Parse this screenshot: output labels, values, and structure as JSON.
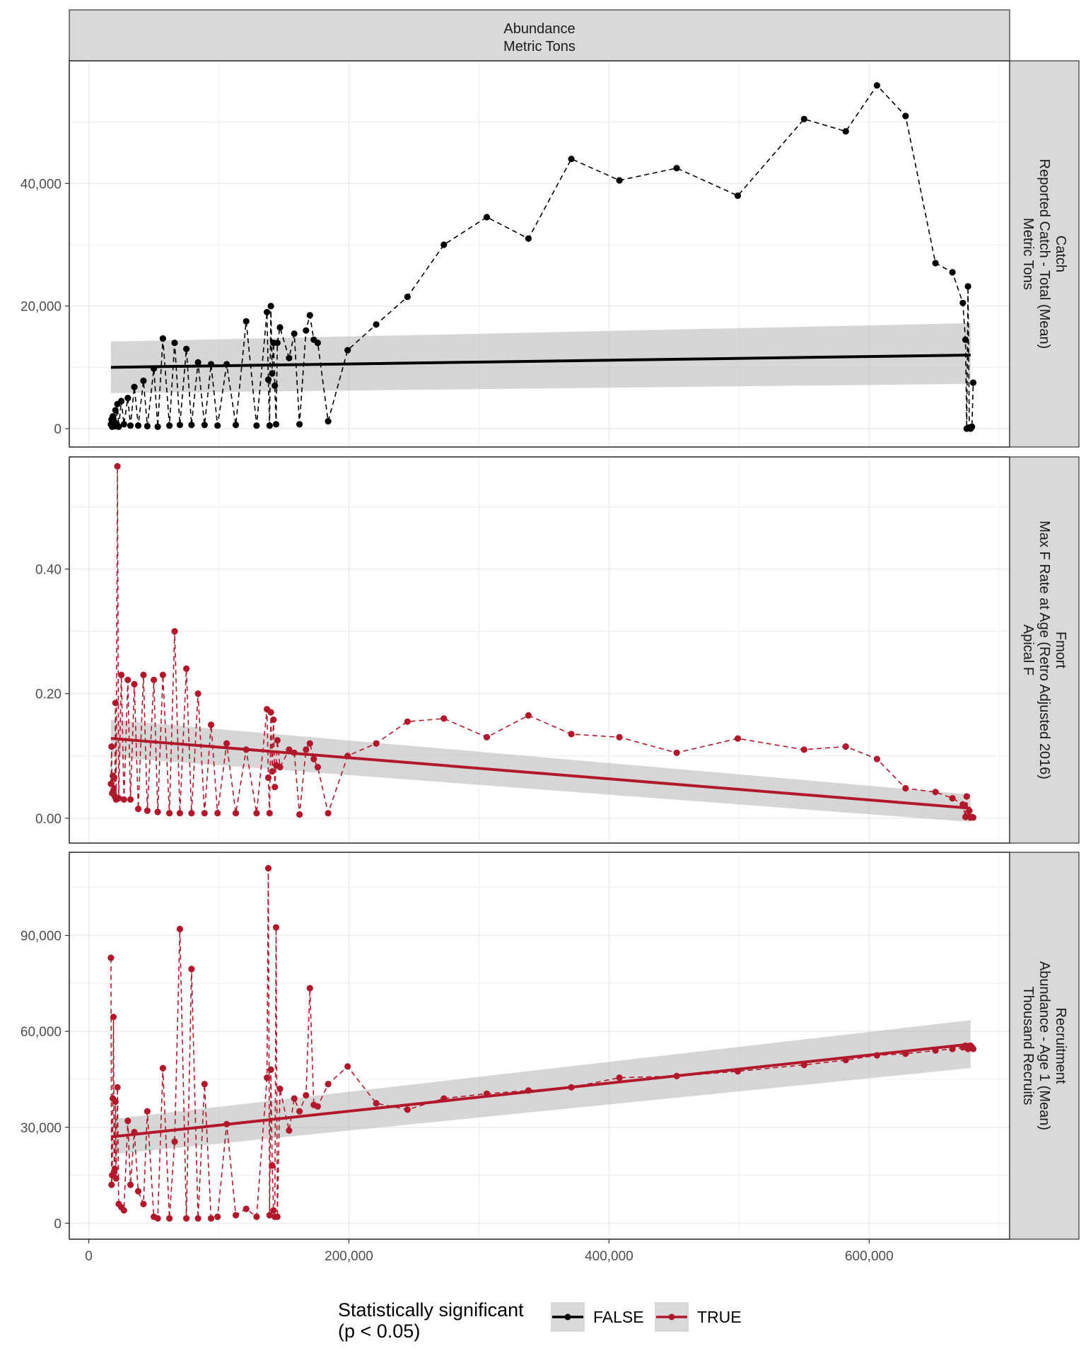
{
  "chart_data": {
    "type": "line",
    "column_strip": [
      "Abundance",
      "Metric Tons"
    ],
    "x_ticks": [
      {
        "value": 0,
        "label": "0"
      },
      {
        "value": 200000,
        "label": "200,000"
      },
      {
        "value": 400000,
        "label": "400,000"
      },
      {
        "value": 600000,
        "label": "600,000"
      }
    ],
    "xlim": [
      -15000,
      708000
    ],
    "colors": {
      "FALSE": "#000000",
      "TRUE": "#b2182b",
      "ribbon": "#bdbdbd",
      "strip": "#d9d9d9",
      "grid": "#ebebeb"
    },
    "legend": {
      "title_lines": [
        "Statistically significant",
        "(p < 0.05)"
      ],
      "placement": "bottom",
      "items": [
        {
          "key": "FALSE",
          "label": "FALSE"
        },
        {
          "key": "TRUE",
          "label": "TRUE"
        }
      ]
    },
    "panels": [
      {
        "strip": [
          "Catch",
          "Reported Catch - Total (Mean)",
          "Metric Tons"
        ],
        "significant": "FALSE",
        "ylim": [
          -3000,
          60000
        ],
        "y_ticks": [
          {
            "value": 0,
            "label": "0"
          },
          {
            "value": 20000,
            "label": "20,000"
          },
          {
            "value": 40000,
            "label": "40,000"
          }
        ],
        "trend": {
          "x": [
            17000,
            678000
          ],
          "y": [
            10000,
            12000
          ],
          "lower": [
            5800,
            7300
          ],
          "upper": [
            14200,
            17200
          ]
        },
        "x": [
          17000,
          17500,
          18000,
          18500,
          19000,
          19500,
          20000,
          20500,
          21000,
          22000,
          23000,
          25000,
          27000,
          30000,
          32000,
          35000,
          38000,
          42000,
          45000,
          50000,
          53000,
          57000,
          62000,
          66000,
          70000,
          75000,
          79000,
          84000,
          89000,
          94000,
          99000,
          106000,
          113000,
          121000,
          129000,
          137000,
          138000,
          139000,
          140000,
          141000,
          142000,
          143000,
          144000,
          145000,
          147000,
          154000,
          158000,
          162000,
          167000,
          170000,
          173000,
          176000,
          184000,
          199000,
          221000,
          245000,
          273000,
          306000,
          338000,
          371000,
          408000,
          452000,
          499000,
          550000,
          582000,
          606000,
          628000,
          651000,
          664000,
          672000,
          674000,
          675000,
          676000,
          677000,
          678000,
          679000,
          680000
        ],
        "y": [
          700,
          1500,
          300,
          2000,
          500,
          1000,
          400,
          3000,
          800,
          4000,
          300,
          4500,
          700,
          5000,
          500,
          6800,
          500,
          7800,
          400,
          9800,
          300,
          14700,
          500,
          14000,
          600,
          13000,
          600,
          10800,
          600,
          10500,
          500,
          10500,
          600,
          17500,
          500,
          19000,
          8000,
          500,
          20000,
          9000,
          14000,
          7000,
          700,
          14000,
          16500,
          11500,
          15500,
          700,
          16000,
          18500,
          14500,
          14000,
          1200,
          12800,
          17000,
          21500,
          30000,
          34500,
          31000,
          44000,
          40500,
          42500,
          38000,
          50500,
          48500,
          56000,
          51000,
          27000,
          25500,
          20500,
          14500,
          0,
          23200,
          200,
          0,
          300,
          7500
        ]
      },
      {
        "strip": [
          "Fmort",
          "Max F Rate at Age (Retro Adjusted 2016)",
          "Apical F"
        ],
        "significant": "TRUE",
        "ylim": [
          -0.04,
          0.58
        ],
        "y_ticks": [
          {
            "value": 0,
            "label": "0.00"
          },
          {
            "value": 0.2,
            "label": "0.20"
          },
          {
            "value": 0.4,
            "label": "0.40"
          }
        ],
        "trend": {
          "x": [
            17000,
            678000
          ],
          "y": [
            0.128,
            0.016
          ],
          "lower": [
            0.098,
            -0.006
          ],
          "upper": [
            0.158,
            0.038
          ]
        },
        "x": [
          17000,
          17500,
          18000,
          18500,
          19000,
          19500,
          20000,
          20500,
          21000,
          22000,
          23000,
          25000,
          27000,
          30000,
          32000,
          35000,
          38000,
          42000,
          45000,
          50000,
          53000,
          57000,
          62000,
          66000,
          70000,
          75000,
          79000,
          84000,
          89000,
          94000,
          99000,
          106000,
          113000,
          121000,
          129000,
          137000,
          138000,
          139000,
          140000,
          141000,
          142000,
          143000,
          144000,
          145000,
          147000,
          154000,
          158000,
          162000,
          167000,
          170000,
          173000,
          176000,
          184000,
          199000,
          221000,
          245000,
          273000,
          306000,
          338000,
          371000,
          408000,
          452000,
          499000,
          550000,
          582000,
          606000,
          628000,
          651000,
          664000,
          672000,
          674000,
          675000,
          676000,
          677000,
          678000,
          679000,
          680000
        ],
        "y": [
          0.055,
          0.115,
          0.04,
          0.068,
          0.045,
          0.065,
          0.035,
          0.185,
          0.03,
          0.565,
          0.032,
          0.23,
          0.03,
          0.222,
          0.03,
          0.215,
          0.015,
          0.23,
          0.012,
          0.222,
          0.01,
          0.23,
          0.008,
          0.3,
          0.008,
          0.24,
          0.008,
          0.2,
          0.008,
          0.15,
          0.008,
          0.12,
          0.008,
          0.11,
          0.008,
          0.175,
          0.065,
          0.008,
          0.17,
          0.075,
          0.158,
          0.05,
          0.085,
          0.125,
          0.082,
          0.11,
          0.105,
          0.006,
          0.11,
          0.12,
          0.095,
          0.082,
          0.008,
          0.1,
          0.12,
          0.155,
          0.16,
          0.13,
          0.165,
          0.135,
          0.13,
          0.105,
          0.128,
          0.11,
          0.115,
          0.095,
          0.048,
          0.042,
          0.032,
          0.022,
          0.002,
          0.035,
          0.003,
          0.012,
          0.001,
          0.002,
          0.001
        ]
      },
      {
        "strip": [
          "Recruitment",
          "Abundance - Age 1 (Mean)",
          "Thousand Recruits"
        ],
        "significant": "TRUE",
        "ylim": [
          -5000,
          116000
        ],
        "y_ticks": [
          {
            "value": 0,
            "label": "0"
          },
          {
            "value": 30000,
            "label": "30,000"
          },
          {
            "value": 60000,
            "label": "60,000"
          },
          {
            "value": 90000,
            "label": "90,000"
          }
        ],
        "trend": {
          "x": [
            17000,
            678000
          ],
          "y": [
            27000,
            56000
          ],
          "lower": [
            21500,
            48500
          ],
          "upper": [
            32500,
            63500
          ]
        },
        "x": [
          17000,
          17500,
          18000,
          18500,
          19000,
          19500,
          20000,
          20500,
          21000,
          22000,
          23000,
          25000,
          27000,
          30000,
          32000,
          35000,
          38000,
          42000,
          45000,
          50000,
          53000,
          57000,
          62000,
          66000,
          70000,
          75000,
          79000,
          84000,
          89000,
          94000,
          99000,
          106000,
          113000,
          121000,
          129000,
          137000,
          138000,
          139000,
          140000,
          141000,
          142000,
          143000,
          144000,
          145000,
          147000,
          154000,
          158000,
          162000,
          167000,
          170000,
          173000,
          176000,
          184000,
          199000,
          221000,
          245000,
          273000,
          306000,
          338000,
          371000,
          408000,
          452000,
          499000,
          550000,
          582000,
          606000,
          628000,
          651000,
          664000,
          672000,
          674000,
          675000,
          676000,
          677000,
          678000,
          679000,
          680000
        ],
        "y": [
          83000,
          12000,
          15000,
          39000,
          64500,
          16000,
          17000,
          38000,
          14000,
          42500,
          6000,
          5000,
          4000,
          32000,
          12000,
          28500,
          10000,
          6000,
          35000,
          2000,
          1500,
          48500,
          1500,
          25500,
          92000,
          1500,
          79500,
          1500,
          43500,
          1500,
          2000,
          31000,
          2500,
          4500,
          2000,
          45500,
          111000,
          2500,
          48000,
          18000,
          4000,
          2000,
          92500,
          2000,
          42000,
          29000,
          39000,
          35000,
          40000,
          73500,
          37000,
          36500,
          43500,
          49000,
          37500,
          35500,
          39000,
          40500,
          41500,
          42500,
          45500,
          46000,
          47500,
          49500,
          51000,
          52500,
          53000,
          54000,
          54500,
          55000,
          55500,
          55000,
          54500,
          55000,
          55500,
          55000,
          54500
        ]
      }
    ]
  }
}
